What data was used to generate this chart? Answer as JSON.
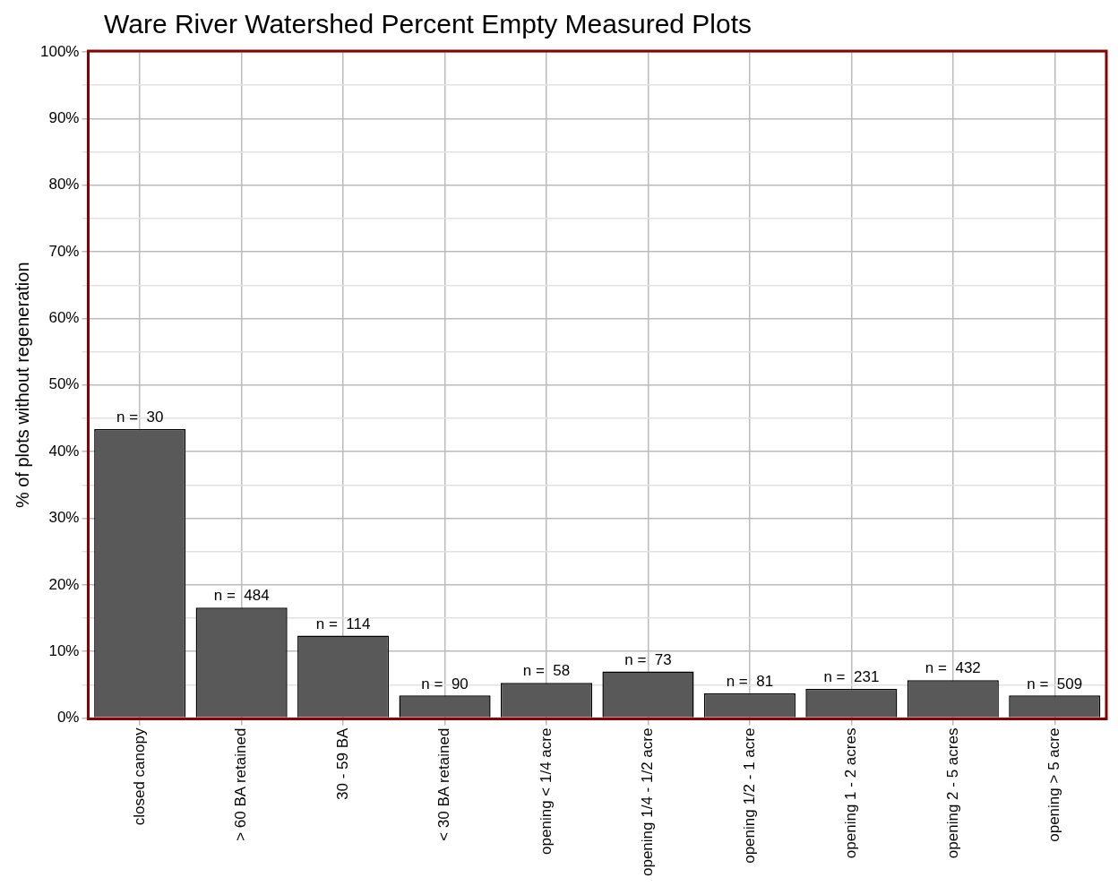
{
  "chart_data": {
    "type": "bar",
    "title": "Ware River Watershed Percent Empty Measured Plots",
    "ylabel": "% of plots without regeneration",
    "categories": [
      "closed canopy",
      "> 60 BA retained",
      "30 - 59 BA",
      "< 30 BA retained",
      "opening < 1/4 acre",
      "opening 1/4 - 1/2 acre",
      "opening 1/2 - 1 acre",
      "opening 1 - 2 acres",
      "opening 2 - 5 acres",
      "opening > 5 acre"
    ],
    "values": [
      43.4,
      16.6,
      12.4,
      3.4,
      5.3,
      7.0,
      3.7,
      4.4,
      5.7,
      3.4
    ],
    "annotations": [
      {
        "text": "n =  30",
        "x": "closed canopy",
        "y": 43.4
      },
      {
        "text": "n =  484",
        "x": "> 60 BA retained",
        "y": 16.6
      },
      {
        "text": "n =  114",
        "x": "30 - 59 BA",
        "y": 12.4
      },
      {
        "text": "n =  90",
        "x": "< 30 BA retained",
        "y": 3.4
      },
      {
        "text": "n =  58",
        "x": "opening < 1/4 acre",
        "y": 5.3
      },
      {
        "text": "n =  73",
        "x": "opening 1/4 - 1/2 acre",
        "y": 7.0
      },
      {
        "text": "n =  81",
        "x": "opening 1/2 - 1 acre",
        "y": 3.7
      },
      {
        "text": "n =  231",
        "x": "opening 1 - 2 acres",
        "y": 4.4
      },
      {
        "text": "n =  432",
        "x": "opening 2 - 5 acres",
        "y": 5.7
      },
      {
        "text": "n =  509",
        "x": "opening > 5 acre",
        "y": 3.4
      }
    ],
    "color": "#595959",
    "ylim": [
      0,
      100
    ],
    "yticks": [
      {
        "value": 0,
        "label": "0%"
      },
      {
        "value": 5,
        "label": null
      },
      {
        "value": 10,
        "label": "10%"
      },
      {
        "value": 15,
        "label": null
      },
      {
        "value": 20,
        "label": "20%"
      },
      {
        "value": 25,
        "label": null
      },
      {
        "value": 30,
        "label": "30%"
      },
      {
        "value": 35,
        "label": null
      },
      {
        "value": 40,
        "label": "40%"
      },
      {
        "value": 45,
        "label": null
      },
      {
        "value": 50,
        "label": "50%"
      },
      {
        "value": 55,
        "label": null
      },
      {
        "value": 60,
        "label": "60%"
      },
      {
        "value": 65,
        "label": null
      },
      {
        "value": 70,
        "label": "70%"
      },
      {
        "value": 75,
        "label": null
      },
      {
        "value": 80,
        "label": "80%"
      },
      {
        "value": 85,
        "label": null
      },
      {
        "value": 90,
        "label": "90%"
      },
      {
        "value": 95,
        "label": null
      },
      {
        "value": 100,
        "label": "100%"
      }
    ],
    "grid": true,
    "legend": false
  }
}
